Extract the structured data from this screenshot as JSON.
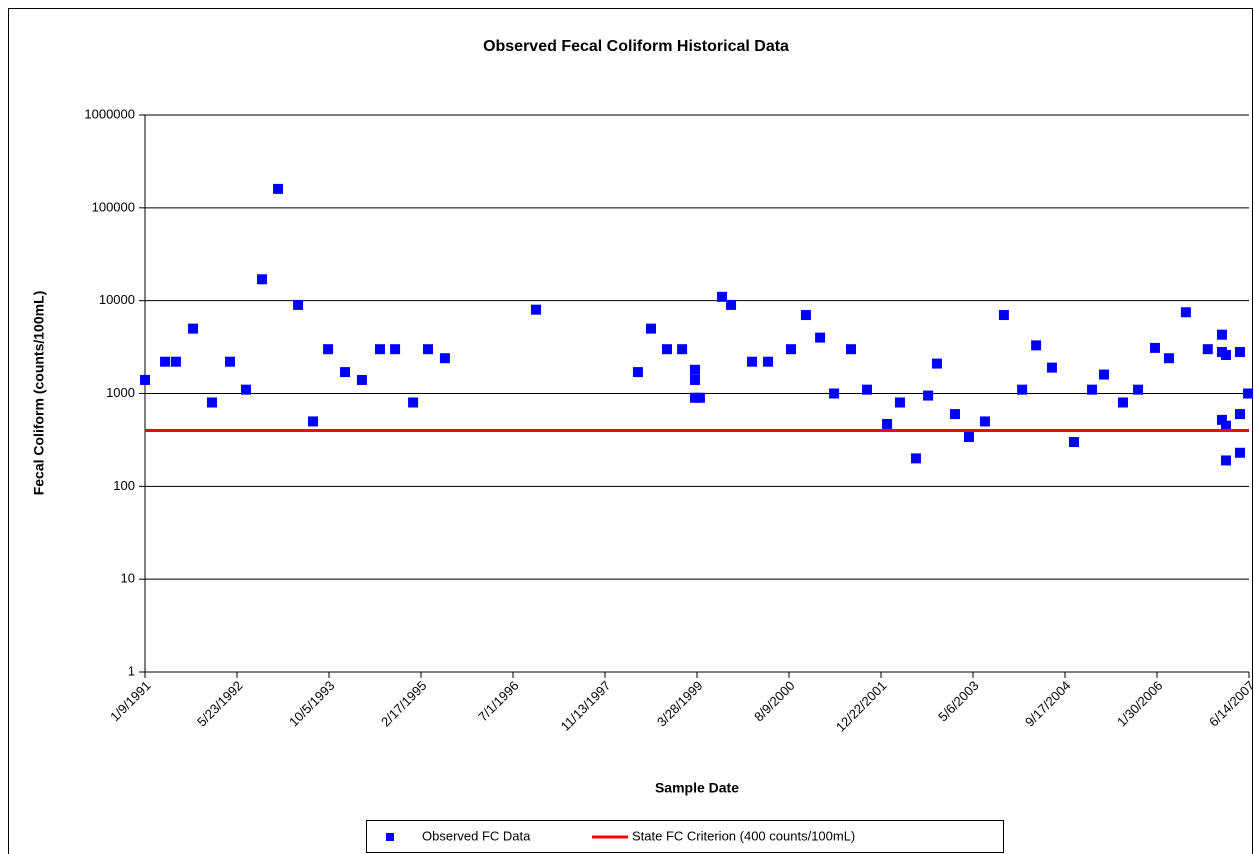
{
  "chart_data": {
    "type": "scatter",
    "title": "Observed Fecal Coliform Historical Data",
    "x_label": "Sample Date",
    "y_label": "Fecal Coliform (counts/100mL)",
    "log_y": true,
    "grid": true,
    "legend": "bottom",
    "xlim": [
      "1/9/1991",
      "6/14/2007"
    ],
    "xticks": [
      "1/9/1991",
      "5/23/1992",
      "10/5/1993",
      "2/17/1995",
      "7/1/1996",
      "11/13/1997",
      "3/28/1999",
      "8/9/2000",
      "12/22/2001",
      "5/6/2003",
      "9/17/2004",
      "1/30/2006",
      "6/14/2007"
    ],
    "ylim": [
      1,
      1000000
    ],
    "yticks": [
      1,
      10,
      100,
      1000,
      10000,
      100000,
      1000000
    ],
    "series": [
      {
        "name": "Observed FC Data",
        "color": "#0000ff",
        "marker": "square",
        "x": [
          "1/9/1991",
          "4/28/1991",
          "6/26/1991",
          "9/27/1991",
          "1/8/1992",
          "4/15/1992",
          "7/11/1992",
          "10/6/1992",
          "1/1/1993",
          "4/20/1993",
          "7/10/1993",
          "9/30/1993",
          "12/31/1993",
          "4/2/1994",
          "7/9/1994",
          "9/29/1994",
          "1/5/1995",
          "3/27/1995",
          "6/27/1995",
          "11/3/1996",
          "5/11/1998",
          "7/21/1998",
          "10/16/1998",
          "1/6/1999",
          "3/17/1999",
          "3/17/1999",
          "3/17/1999",
          "4/13/1999",
          "8/11/1999",
          "9/29/1999",
          "1/21/2000",
          "4/17/2000",
          "8/20/2000",
          "11/9/2000",
          "1/25/2001",
          "4/11/2001",
          "7/12/2001",
          "10/7/2001",
          "1/24/2002",
          "4/4/2002",
          "6/30/2002",
          "9/4/2002",
          "10/22/2002",
          "1/28/2003",
          "4/14/2003",
          "7/10/2003",
          "10/21/2003",
          "1/28/2004",
          "4/13/2004",
          "7/8/2004",
          "11/5/2004",
          "2/11/2005",
          "4/17/2005",
          "7/29/2005",
          "10/19/2005",
          "1/19/2006",
          "4/5/2006",
          "7/6/2006",
          "11/2/2006",
          "1/18/2007",
          "1/18/2007",
          "2/9/2007",
          "1/18/2007",
          "2/9/2007",
          "2/9/2007",
          "4/26/2007",
          "4/26/2007",
          "4/26/2007",
          "6/9/2007"
        ],
        "values": [
          1400,
          2200,
          2200,
          5000,
          800,
          2200,
          1100,
          17000,
          160000,
          9000,
          500,
          3000,
          1700,
          1400,
          3000,
          3000,
          800,
          3000,
          2400,
          8000,
          1700,
          5000,
          3000,
          3000,
          1800,
          1400,
          900,
          900,
          11000,
          9000,
          2200,
          2200,
          3000,
          7000,
          4000,
          1000,
          3000,
          1100,
          470,
          800,
          200,
          950,
          2100,
          600,
          340,
          500,
          7000,
          1100,
          3300,
          1900,
          300,
          1100,
          1600,
          800,
          1100,
          3100,
          2400,
          7500,
          3000,
          4300,
          2800,
          2600,
          520,
          450,
          190,
          2800,
          600,
          230,
          1000
        ]
      },
      {
        "name": "State FC Criterion (400 counts/100mL)",
        "color": "#ff0000",
        "marker": "line",
        "x": [
          "1/9/1991",
          "6/14/2007"
        ],
        "values": [
          400,
          400
        ]
      }
    ]
  }
}
